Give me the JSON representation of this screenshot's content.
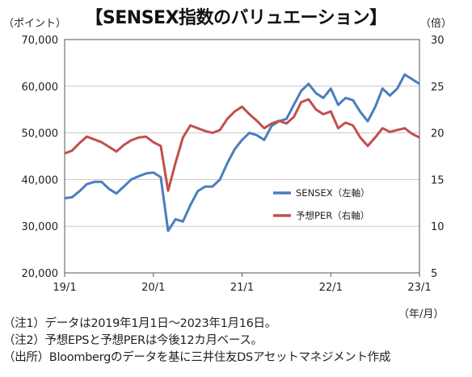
{
  "title": "【SENSEX指数のバリュエーション】",
  "units": {
    "left": "（ポイント）",
    "right": "（倍）",
    "x": "（年/月）"
  },
  "notes": [
    "（注1）データは2019年1月1日～2023年1月16日。",
    "（注2）予想EPSと予想PERは今後12カ月ベース。",
    "（出所）Bloombergのデータを基に三井住友DSアセットマネジメント作成"
  ],
  "colors": {
    "sensex": "#4a7dc0",
    "per": "#c0504d",
    "grid": "#c8c8c8"
  },
  "chart_data": {
    "type": "line",
    "x_ticks": [
      "19/1",
      "20/1",
      "21/1",
      "22/1",
      "23/1"
    ],
    "y_left": {
      "range": [
        20000,
        70000
      ],
      "ticks": [
        "20,000",
        "30,000",
        "40,000",
        "50,000",
        "60,000",
        "70,000"
      ]
    },
    "y_right": {
      "range": [
        5,
        30
      ],
      "ticks": [
        "5",
        "10",
        "15",
        "20",
        "25",
        "30"
      ]
    },
    "grid": true,
    "legend_position": "center-right",
    "series": [
      {
        "name": "SENSEX（左軸）",
        "axis": "left",
        "x": [
          "2019-01",
          "2019-02",
          "2019-03",
          "2019-04",
          "2019-05",
          "2019-06",
          "2019-07",
          "2019-08",
          "2019-09",
          "2019-10",
          "2019-11",
          "2019-12",
          "2020-01",
          "2020-02",
          "2020-03",
          "2020-04",
          "2020-05",
          "2020-06",
          "2020-07",
          "2020-08",
          "2020-09",
          "2020-10",
          "2020-11",
          "2020-12",
          "2021-01",
          "2021-02",
          "2021-03",
          "2021-04",
          "2021-05",
          "2021-06",
          "2021-07",
          "2021-08",
          "2021-09",
          "2021-10",
          "2021-11",
          "2021-12",
          "2022-01",
          "2022-02",
          "2022-03",
          "2022-04",
          "2022-05",
          "2022-06",
          "2022-07",
          "2022-08",
          "2022-09",
          "2022-10",
          "2022-11",
          "2022-12",
          "2023-01"
        ],
        "values": [
          36000,
          36200,
          37500,
          39000,
          39500,
          39500,
          38000,
          37000,
          38500,
          40000,
          40700,
          41300,
          41500,
          40500,
          29000,
          31500,
          31000,
          34500,
          37500,
          38500,
          38500,
          40000,
          43500,
          46500,
          48500,
          50000,
          49500,
          48500,
          51500,
          52500,
          53000,
          56000,
          59000,
          60500,
          58500,
          57500,
          59500,
          56000,
          57500,
          57000,
          54500,
          52500,
          55500,
          59500,
          58000,
          59500,
          62500,
          61500,
          60500
        ]
      },
      {
        "name": "予想PER（右軸）",
        "axis": "right",
        "x": [
          "2019-01",
          "2019-02",
          "2019-03",
          "2019-04",
          "2019-05",
          "2019-06",
          "2019-07",
          "2019-08",
          "2019-09",
          "2019-10",
          "2019-11",
          "2019-12",
          "2020-01",
          "2020-02",
          "2020-03",
          "2020-04",
          "2020-05",
          "2020-06",
          "2020-07",
          "2020-08",
          "2020-09",
          "2020-10",
          "2020-11",
          "2020-12",
          "2021-01",
          "2021-02",
          "2021-03",
          "2021-04",
          "2021-05",
          "2021-06",
          "2021-07",
          "2021-08",
          "2021-09",
          "2021-10",
          "2021-11",
          "2021-12",
          "2022-01",
          "2022-02",
          "2022-03",
          "2022-04",
          "2022-05",
          "2022-06",
          "2022-07",
          "2022-08",
          "2022-09",
          "2022-10",
          "2022-11",
          "2022-12",
          "2023-01"
        ],
        "values": [
          17.8,
          18.1,
          18.9,
          19.6,
          19.3,
          19.0,
          18.5,
          18.0,
          18.7,
          19.2,
          19.5,
          19.6,
          19.0,
          18.6,
          13.8,
          16.8,
          19.5,
          20.8,
          20.5,
          20.2,
          20.0,
          20.3,
          21.5,
          22.3,
          22.8,
          22.0,
          21.3,
          20.5,
          21.0,
          21.3,
          21.0,
          21.7,
          23.3,
          23.6,
          22.5,
          22.0,
          22.3,
          20.5,
          21.1,
          20.8,
          19.5,
          18.6,
          19.5,
          20.5,
          20.1,
          20.3,
          20.5,
          19.9,
          19.5
        ]
      }
    ]
  }
}
